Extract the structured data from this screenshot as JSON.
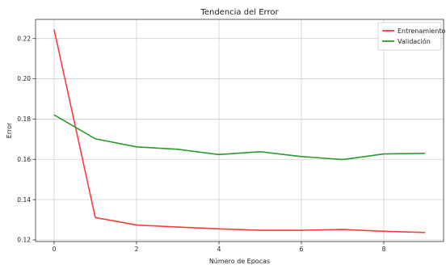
{
  "chart_data": {
    "type": "line",
    "title": "Tendencia del Error",
    "xlabel": "Número de Epocas",
    "ylabel": "Error",
    "xlim": [
      -0.45,
      9.45
    ],
    "ylim": [
      0.1192,
      0.2295
    ],
    "xticks": [
      0,
      2,
      4,
      6,
      8
    ],
    "yticks": [
      0.12,
      0.14,
      0.16,
      0.18,
      0.2,
      0.22
    ],
    "ytick_labels": [
      "0.12",
      "0.14",
      "0.16",
      "0.18",
      "0.20",
      "0.22"
    ],
    "grid": true,
    "legend_position": "top-right",
    "x": [
      0,
      1,
      2,
      3,
      4,
      5,
      6,
      7,
      8,
      9
    ],
    "series": [
      {
        "name": "Entrenamiento",
        "color": "#ff3b3b",
        "values": [
          0.2245,
          0.1311,
          0.1274,
          0.1264,
          0.1255,
          0.1248,
          0.1248,
          0.1252,
          0.1243,
          0.1237
        ]
      },
      {
        "name": "Validación",
        "color": "#2e9a2e",
        "values": [
          0.1821,
          0.1702,
          0.1662,
          0.165,
          0.1624,
          0.1638,
          0.1614,
          0.1599,
          0.1627,
          0.163
        ]
      }
    ]
  }
}
